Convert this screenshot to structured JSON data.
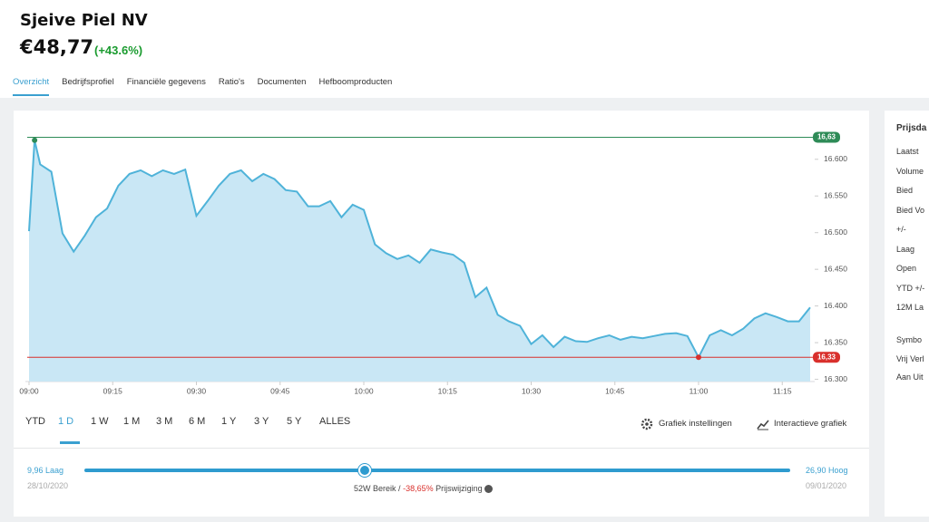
{
  "header": {
    "title": "Sjeive Piel NV",
    "price": "€48,77",
    "change": "(+43.6%)"
  },
  "tabs": [
    "Overzicht",
    "Bedrijfsprofiel",
    "Financiële gegevens",
    "Ratio's",
    "Documenten",
    "Hefboomproducten"
  ],
  "chart_data": {
    "type": "area",
    "color": "#4fb3d9",
    "fill": "#c9e7f5",
    "x": [
      "09:00",
      "09:01",
      "09:02",
      "09:04",
      "09:06",
      "09:08",
      "09:10",
      "09:12",
      "09:14",
      "09:16",
      "09:18",
      "09:20",
      "09:22",
      "09:24",
      "09:26",
      "09:28",
      "09:30",
      "09:32",
      "09:34",
      "09:36",
      "09:38",
      "09:40",
      "09:42",
      "09:44",
      "09:46",
      "09:48",
      "09:50",
      "09:52",
      "09:54",
      "09:56",
      "09:58",
      "10:00",
      "10:02",
      "10:04",
      "10:06",
      "10:08",
      "10:10",
      "10:12",
      "10:14",
      "10:16",
      "10:18",
      "10:20",
      "10:22",
      "10:24",
      "10:26",
      "10:28",
      "10:30",
      "10:32",
      "10:34",
      "10:36",
      "10:38",
      "10:40",
      "10:42",
      "10:44",
      "10:46",
      "10:48",
      "10:50",
      "10:52",
      "10:54",
      "10:56",
      "10:58",
      "11:00",
      "11:02",
      "11:04",
      "11:06",
      "11:08",
      "11:10",
      "11:12",
      "11:14",
      "11:16",
      "11:18",
      "11:20"
    ],
    "values": [
      16.502,
      16.626,
      16.593,
      16.583,
      16.499,
      16.474,
      16.496,
      16.521,
      16.533,
      16.564,
      16.58,
      16.585,
      16.577,
      16.585,
      16.58,
      16.586,
      16.523,
      16.543,
      16.564,
      16.58,
      16.585,
      16.57,
      16.58,
      16.573,
      16.558,
      16.556,
      16.536,
      16.536,
      16.543,
      16.521,
      16.538,
      16.531,
      16.484,
      16.472,
      16.464,
      16.469,
      16.459,
      16.477,
      16.473,
      16.47,
      16.459,
      16.412,
      16.425,
      16.388,
      16.379,
      16.373,
      16.348,
      16.36,
      16.344,
      16.358,
      16.352,
      16.351,
      16.356,
      16.36,
      16.354,
      16.358,
      16.356,
      16.359,
      16.362,
      16.363,
      16.359,
      16.33,
      16.36,
      16.367,
      16.36,
      16.369,
      16.383,
      16.39,
      16.385,
      16.379,
      16.379,
      16.398
    ],
    "xlim": [
      "09:00",
      "11:20"
    ],
    "xticks": [
      "09:00",
      "09:15",
      "09:30",
      "09:45",
      "10:00",
      "10:15",
      "10:30",
      "10:45",
      "11:00",
      "11:15"
    ],
    "ylim": [
      16.297,
      16.659
    ],
    "yticks": [
      {
        "value": 16.6,
        "label": "16.600"
      },
      {
        "value": 16.55,
        "label": "16.550"
      },
      {
        "value": 16.5,
        "label": "16.500"
      },
      {
        "value": 16.45,
        "label": "16.450"
      },
      {
        "value": 16.4,
        "label": "16.400"
      },
      {
        "value": 16.35,
        "label": "16.350"
      },
      {
        "value": 16.3,
        "label": "16.300"
      }
    ],
    "high": {
      "value": 16.63,
      "label": "16,63",
      "color": "#2e8b57"
    },
    "low": {
      "value": 16.33,
      "label": "16,33",
      "color": "#d9302c"
    },
    "grid": false
  },
  "periods": [
    "YTD",
    "1 D",
    "1 W",
    "1 M",
    "3 M",
    "6 M",
    "1 Y",
    "3 Y",
    "5 Y",
    "ALLES"
  ],
  "tools": [
    "Grafiek instellingen",
    "Interactieve grafiek"
  ],
  "range": {
    "low": "9,96 Laag",
    "low_date": "28/10/2020",
    "high": "26,90 Hoog",
    "high_date": "09/01/2020",
    "label": "52W Bereik",
    "sep": "/",
    "change": "-38,65%",
    "change_label": "Prijswijziging"
  },
  "side": {
    "title": "Prijsda",
    "rows": [
      "Laatst",
      "Volume",
      "Bied",
      "Bied Vo",
      "+/-",
      "Laag",
      "Open",
      "YTD +/-",
      "12M La"
    ],
    "rows2": [
      "Symbo",
      "Vrij Verl",
      "Aan Uit"
    ]
  }
}
